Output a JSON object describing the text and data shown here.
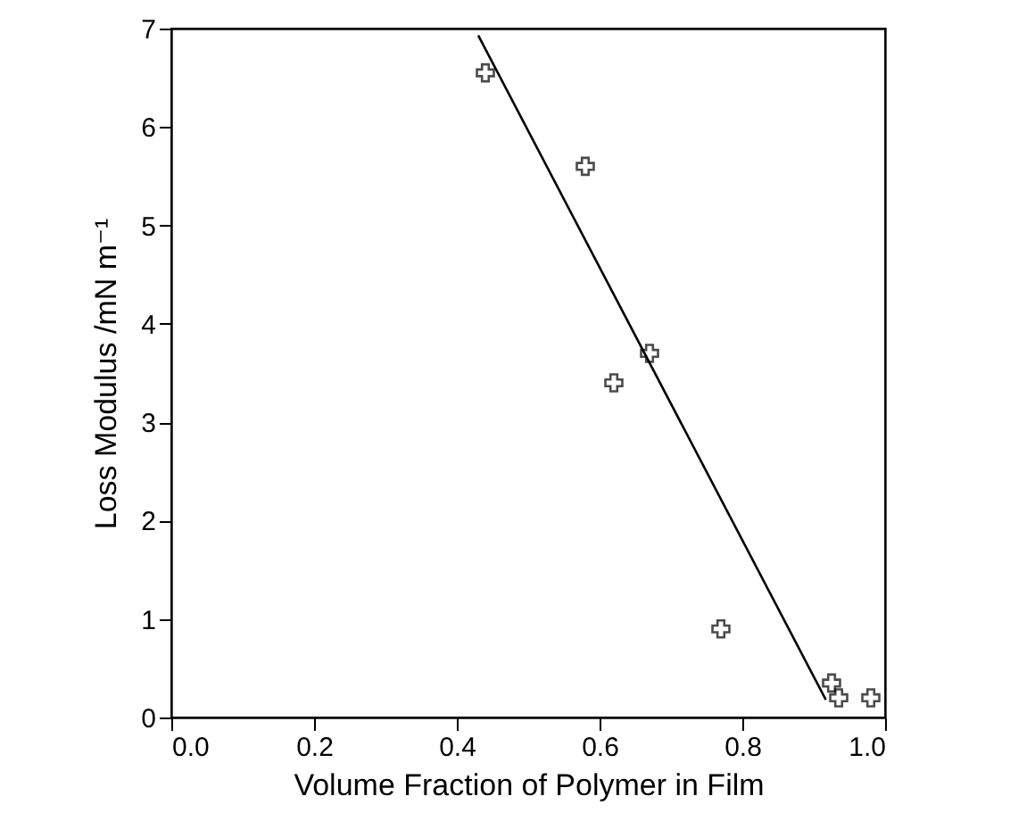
{
  "chart_data": {
    "type": "scatter",
    "xlabel": "Volume Fraction of Polymer in Film",
    "ylabel": "Loss Modulus /mN m⁻¹",
    "xlim": [
      0,
      1
    ],
    "ylim": [
      0,
      7
    ],
    "xticks": [
      {
        "value": 0,
        "label": "0.0"
      },
      0.2,
      0.4,
      0.6,
      0.8,
      {
        "value": 1,
        "label": "1.0"
      }
    ],
    "yticks": [
      0,
      1,
      2,
      3,
      4,
      5,
      6,
      7
    ],
    "marker": "cross",
    "grid": false,
    "series": [
      {
        "color": "#000000",
        "x": [
          0.44,
          0.58,
          0.62,
          0.67,
          0.77,
          0.925,
          0.935,
          0.98
        ],
        "values": [
          6.55,
          5.6,
          3.4,
          3.7,
          0.9,
          0.35,
          0.2,
          0.2
        ]
      },
      {
        "type": "line",
        "marker": "none",
        "color": "#000000",
        "x": [
          0.43,
          0.917
        ],
        "values": [
          6.93,
          0.18
        ]
      }
    ]
  }
}
